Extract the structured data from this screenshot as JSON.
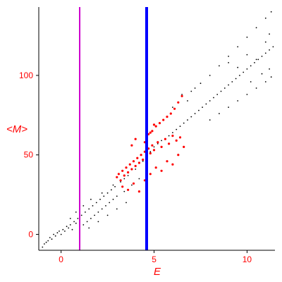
{
  "chart_data": {
    "type": "scatter",
    "xlabel": "E",
    "ylabel": "<M>",
    "xlim": [
      -1.2,
      11.5
    ],
    "ylim": [
      -10,
      143
    ],
    "x_ticks": [
      "0",
      "5",
      "10"
    ],
    "y_ticks": [
      "0",
      "50",
      "100"
    ],
    "grid": false,
    "vertical_lines": [
      {
        "x": 1.0,
        "color": "#cc00cc"
      },
      {
        "x": 4.6,
        "color": "#0000ff"
      }
    ],
    "series": [
      {
        "color": "#000000",
        "points": [
          [
            -1.0,
            -8
          ],
          [
            -0.9,
            -6
          ],
          [
            -0.8,
            -5
          ],
          [
            -0.7,
            -4
          ],
          [
            -0.6,
            -2
          ],
          [
            -0.5,
            -3
          ],
          [
            -0.4,
            0
          ],
          [
            -0.3,
            -1
          ],
          [
            -0.2,
            1
          ],
          [
            -0.1,
            2
          ],
          [
            0.0,
            0
          ],
          [
            0.1,
            3
          ],
          [
            0.2,
            2
          ],
          [
            0.3,
            5
          ],
          [
            0.4,
            4
          ],
          [
            0.5,
            6
          ],
          [
            0.6,
            3
          ],
          [
            0.7,
            8
          ],
          [
            0.8,
            7
          ],
          [
            0.9,
            10
          ],
          [
            1.0,
            9
          ],
          [
            1.1,
            12
          ],
          [
            1.2,
            6
          ],
          [
            1.3,
            14
          ],
          [
            1.4,
            8
          ],
          [
            1.5,
            16
          ],
          [
            1.6,
            10
          ],
          [
            1.7,
            18
          ],
          [
            1.8,
            12
          ],
          [
            1.9,
            20
          ],
          [
            2.0,
            14
          ],
          [
            2.1,
            22
          ],
          [
            2.2,
            16
          ],
          [
            2.3,
            24
          ],
          [
            2.4,
            18
          ],
          [
            2.5,
            26
          ],
          [
            2.6,
            20
          ],
          [
            2.7,
            28
          ],
          [
            2.8,
            22
          ],
          [
            2.9,
            30
          ],
          [
            3.0,
            24
          ],
          [
            3.2,
            33
          ],
          [
            3.4,
            27
          ],
          [
            3.6,
            37
          ],
          [
            3.8,
            31
          ],
          [
            4.0,
            41
          ],
          [
            4.2,
            35
          ],
          [
            4.4,
            46
          ],
          [
            4.6,
            40
          ],
          [
            4.8,
            52
          ],
          [
            5.0,
            55
          ],
          [
            5.2,
            57
          ],
          [
            5.4,
            59
          ],
          [
            5.6,
            60
          ],
          [
            5.8,
            62
          ],
          [
            6.0,
            64
          ],
          [
            6.2,
            66
          ],
          [
            6.4,
            68
          ],
          [
            6.6,
            70
          ],
          [
            6.8,
            72
          ],
          [
            7.0,
            74
          ],
          [
            7.2,
            76
          ],
          [
            7.4,
            78
          ],
          [
            7.6,
            80
          ],
          [
            7.8,
            82
          ],
          [
            8.0,
            84
          ],
          [
            8.2,
            86
          ],
          [
            8.4,
            88
          ],
          [
            8.6,
            90
          ],
          [
            8.8,
            92
          ],
          [
            9.0,
            94
          ],
          [
            9.2,
            96
          ],
          [
            9.4,
            98
          ],
          [
            9.6,
            100
          ],
          [
            9.8,
            102
          ],
          [
            10.0,
            104
          ],
          [
            10.2,
            106
          ],
          [
            10.4,
            108
          ],
          [
            10.6,
            110
          ],
          [
            10.8,
            112
          ],
          [
            11.0,
            114
          ],
          [
            11.2,
            116
          ],
          [
            11.4,
            118
          ],
          [
            7.0,
            90
          ],
          [
            7.5,
            95
          ],
          [
            8.0,
            100
          ],
          [
            8.5,
            106
          ],
          [
            9.0,
            112
          ],
          [
            9.5,
            118
          ],
          [
            10.0,
            124
          ],
          [
            10.5,
            130
          ],
          [
            11.0,
            136
          ],
          [
            11.3,
            140
          ],
          [
            8.0,
            72
          ],
          [
            8.5,
            76
          ],
          [
            9.0,
            80
          ],
          [
            9.5,
            84
          ],
          [
            10.0,
            88
          ],
          [
            10.5,
            92
          ],
          [
            11.0,
            96
          ],
          [
            11.3,
            99
          ],
          [
            9.0,
            108
          ],
          [
            9.5,
            105
          ],
          [
            10.0,
            113
          ],
          [
            10.5,
            110
          ],
          [
            11.0,
            121
          ],
          [
            11.2,
            126
          ],
          [
            10.2,
            96
          ],
          [
            10.8,
            101
          ],
          [
            11.2,
            104
          ],
          [
            6.5,
            88
          ],
          [
            6.8,
            84
          ],
          [
            7.2,
            92
          ],
          [
            6.0,
            80
          ],
          [
            1.5,
            4
          ],
          [
            2.0,
            8
          ],
          [
            2.5,
            12
          ],
          [
            3.0,
            16
          ],
          [
            3.5,
            20
          ],
          [
            0.5,
            10
          ],
          [
            0.8,
            14
          ],
          [
            1.2,
            18
          ],
          [
            1.6,
            22
          ],
          [
            2.2,
            26
          ],
          [
            2.8,
            31
          ],
          [
            3.4,
            35
          ]
        ]
      },
      {
        "color": "#ff0000",
        "points": [
          [
            3.0,
            36
          ],
          [
            3.1,
            38
          ],
          [
            3.2,
            34
          ],
          [
            3.3,
            40
          ],
          [
            3.4,
            37
          ],
          [
            3.5,
            42
          ],
          [
            3.6,
            39
          ],
          [
            3.7,
            44
          ],
          [
            3.8,
            41
          ],
          [
            3.9,
            46
          ],
          [
            4.0,
            43
          ],
          [
            4.1,
            48
          ],
          [
            4.2,
            45
          ],
          [
            4.3,
            50
          ],
          [
            4.4,
            47
          ],
          [
            4.5,
            52
          ],
          [
            4.6,
            49
          ],
          [
            4.7,
            54
          ],
          [
            4.8,
            51
          ],
          [
            4.9,
            56
          ],
          [
            5.0,
            53
          ],
          [
            5.2,
            58
          ],
          [
            5.4,
            55
          ],
          [
            5.6,
            60
          ],
          [
            5.8,
            57
          ],
          [
            6.0,
            62
          ],
          [
            6.2,
            59
          ],
          [
            6.4,
            61
          ],
          [
            4.5,
            58
          ],
          [
            4.7,
            63
          ],
          [
            4.9,
            65
          ],
          [
            5.1,
            68
          ],
          [
            5.3,
            70
          ],
          [
            5.5,
            72
          ],
          [
            5.7,
            74
          ],
          [
            5.9,
            76
          ],
          [
            6.1,
            79
          ],
          [
            6.3,
            83
          ],
          [
            6.5,
            87
          ],
          [
            4.6,
            66
          ],
          [
            4.8,
            64
          ],
          [
            5.0,
            69
          ],
          [
            3.3,
            30
          ],
          [
            3.6,
            28
          ],
          [
            3.9,
            32
          ],
          [
            4.2,
            27
          ],
          [
            4.5,
            34
          ],
          [
            4.8,
            38
          ],
          [
            5.1,
            42
          ],
          [
            5.4,
            40
          ],
          [
            5.7,
            46
          ],
          [
            6.0,
            44
          ],
          [
            6.3,
            50
          ],
          [
            6.6,
            55
          ],
          [
            3.8,
            56
          ],
          [
            4.0,
            60
          ]
        ]
      }
    ]
  }
}
